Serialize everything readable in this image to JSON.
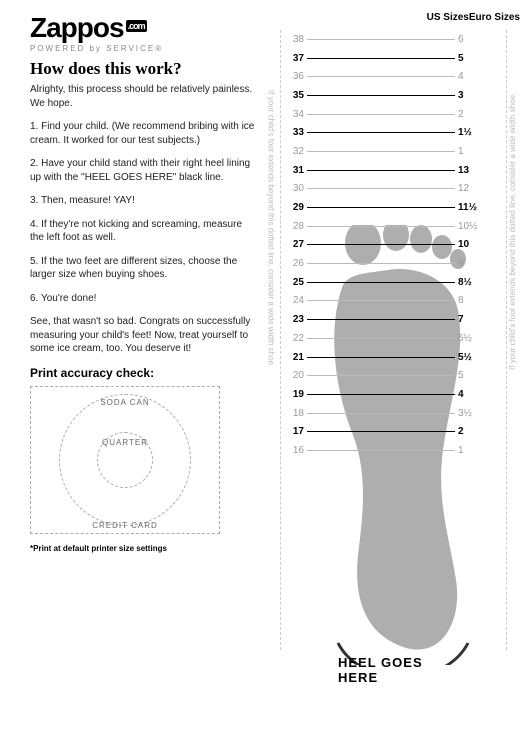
{
  "logo": {
    "name": "Zappos",
    "suffix": ".com",
    "tagline": "POWERED by SERVICE®"
  },
  "size_labels": {
    "us": "US Sizes",
    "euro": "Euro Sizes"
  },
  "heading": "How does this work?",
  "intro": "Alrighty, this process should be relatively painless. We hope.",
  "steps": [
    "1. Find your child. (We recommend bribing with ice cream. It worked for our test subjects.)",
    "2. Have your child stand with their right heel lining up with the \"HEEL GOES HERE\" black line.",
    "3. Then, measure! YAY!",
    "4. If they're not kicking and screaming, measure the left foot as well.",
    "5. If the two feet are different sizes, choose the larger size when buying shoes.",
    "6. You're done!"
  ],
  "outro": "See, that wasn't so bad. Congrats on successfully measuring your child's feet! Now, treat yourself to some ice cream, too. You deserve it!",
  "accuracy": {
    "title": "Print accuracy check:",
    "soda": "SODA CAN",
    "quarter": "QUARTER",
    "card": "CREDIT CARD",
    "footnote": "*Print at default printer size settings"
  },
  "vertical_note": "If your child's foot extends beyond this dotted line, consider a wide width shoe.",
  "heel_label": "HEEL GOES HERE",
  "ruler": {
    "colors": {
      "bold_text": "#000000",
      "light_text": "#999999",
      "bold_line": "#000000",
      "light_line": "#bbbbbb",
      "foot_fill": "#9a9a9a"
    },
    "rows": [
      {
        "us": "38",
        "eu": "6",
        "bold": false
      },
      {
        "us": "37",
        "eu": "5",
        "bold": true
      },
      {
        "us": "36",
        "eu": "4",
        "bold": false
      },
      {
        "us": "35",
        "eu": "3",
        "bold": true
      },
      {
        "us": "34",
        "eu": "2",
        "bold": false
      },
      {
        "us": "33",
        "eu": "1½",
        "bold": true
      },
      {
        "us": "32",
        "eu": "1",
        "bold": false
      },
      {
        "us": "31",
        "eu": "13",
        "bold": true
      },
      {
        "us": "30",
        "eu": "12",
        "bold": false
      },
      {
        "us": "29",
        "eu": "11½",
        "bold": true
      },
      {
        "us": "28",
        "eu": "10½",
        "bold": false
      },
      {
        "us": "27",
        "eu": "10",
        "bold": true
      },
      {
        "us": "26",
        "eu": "9",
        "bold": false
      },
      {
        "us": "25",
        "eu": "8½",
        "bold": true
      },
      {
        "us": "24",
        "eu": "8",
        "bold": false
      },
      {
        "us": "23",
        "eu": "7",
        "bold": true
      },
      {
        "us": "22",
        "eu": "6½",
        "bold": false
      },
      {
        "us": "21",
        "eu": "5½",
        "bold": true
      },
      {
        "us": "20",
        "eu": "5",
        "bold": false
      },
      {
        "us": "19",
        "eu": "4",
        "bold": true
      },
      {
        "us": "18",
        "eu": "3½",
        "bold": false
      },
      {
        "us": "17",
        "eu": "2",
        "bold": true
      },
      {
        "us": "16",
        "eu": "1",
        "bold": false
      }
    ]
  }
}
